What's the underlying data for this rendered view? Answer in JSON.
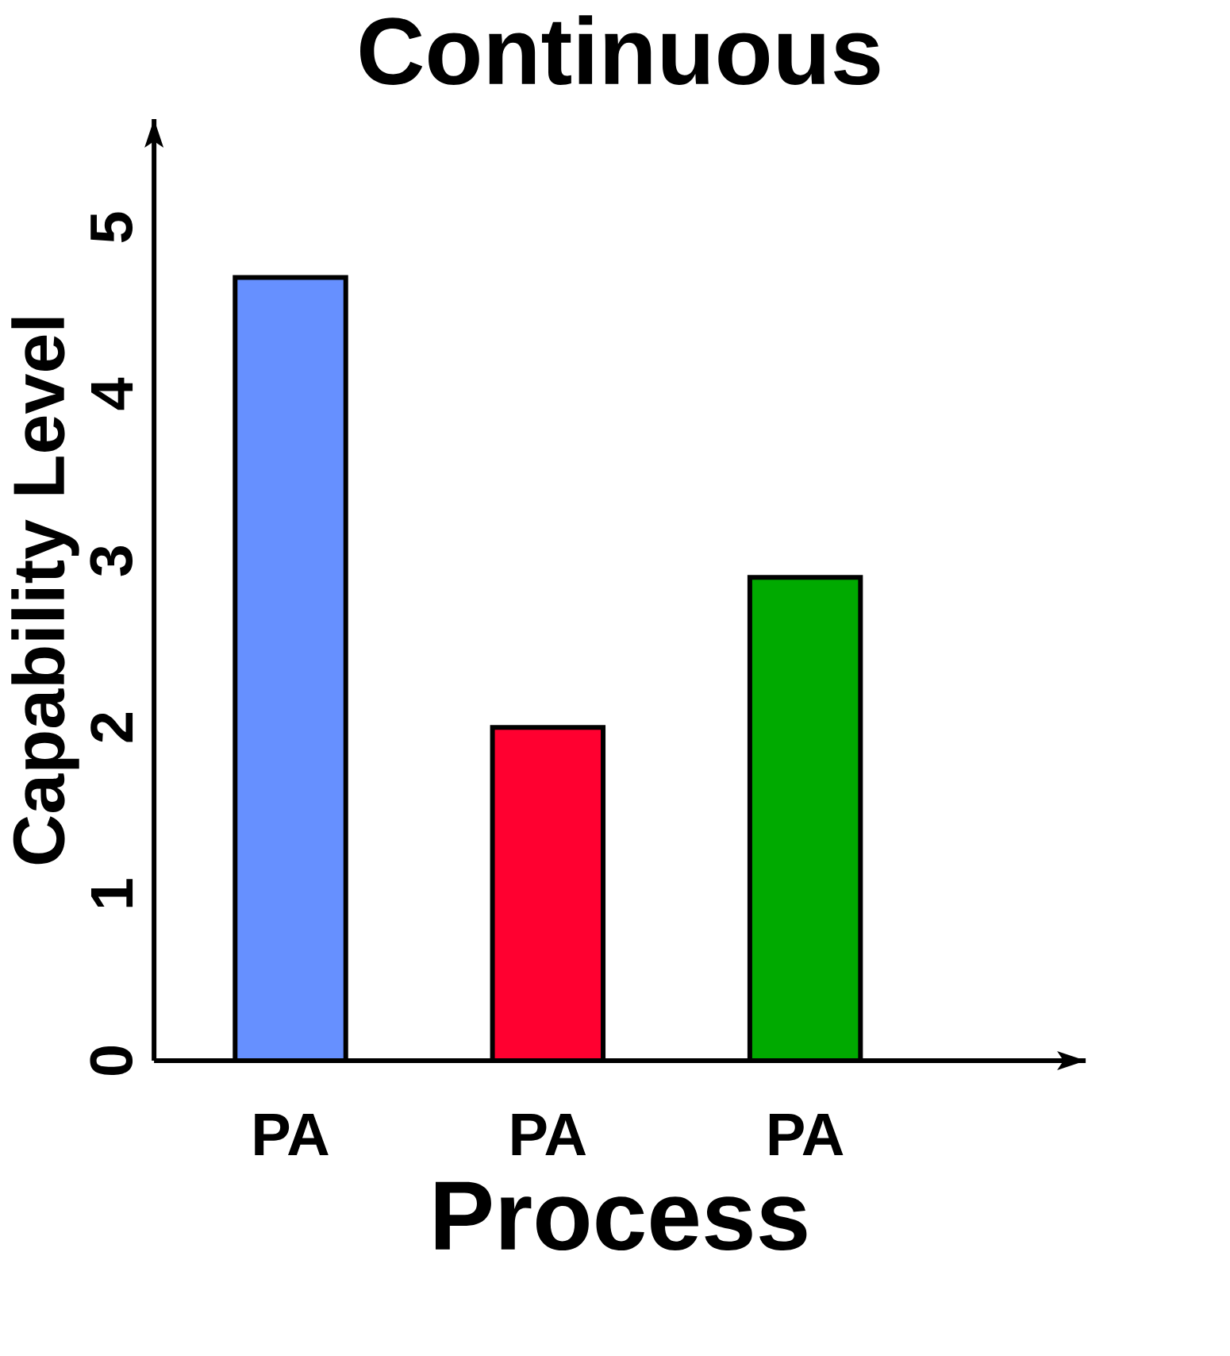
{
  "chart_data": {
    "type": "bar",
    "title": "Continuous",
    "xlabel": "Process",
    "ylabel": "Capability Level",
    "categories": [
      "PA",
      "PA",
      "PA"
    ],
    "values": [
      4.7,
      2.0,
      2.9
    ],
    "colors": [
      "#6690ff",
      "#ff0030",
      "#00aa00"
    ],
    "ylim": [
      0,
      5.65
    ],
    "yticks": [
      0,
      1,
      2,
      3,
      4,
      5
    ]
  }
}
